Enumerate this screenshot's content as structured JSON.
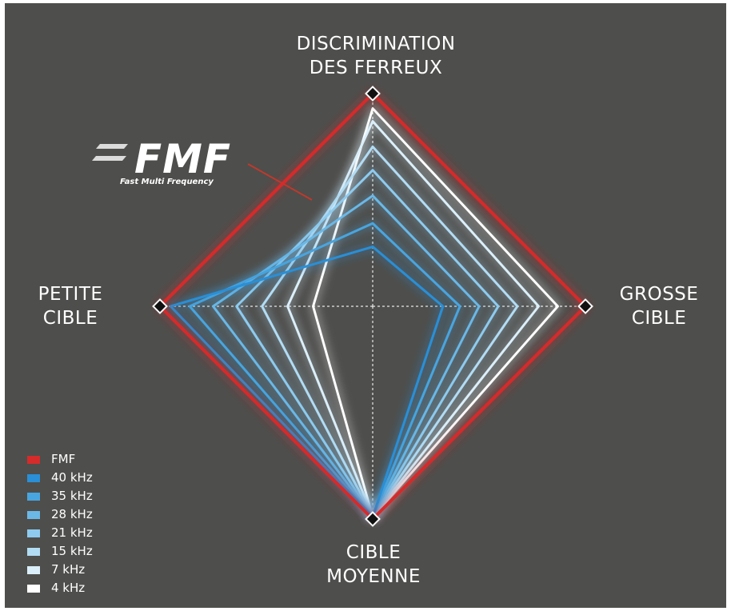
{
  "chart_data": {
    "type": "radar",
    "logo": {
      "text": "FMF",
      "subtitle": "Fast Multi Frequency"
    },
    "categories": [
      "DISCRIMINATION\nDES FERREUX",
      "GROSSE\nCIBLE",
      "CIBLE\nMOYENNE",
      "PETITE\nCIBLE"
    ],
    "ylim": [
      0,
      100
    ],
    "series": [
      {
        "name": "FMF",
        "color": "#d62b2b",
        "values": [
          100,
          100,
          100,
          100
        ]
      },
      {
        "name": "40 kHz",
        "color": "#2a8fd6",
        "values": [
          28,
          33,
          99,
          95
        ]
      },
      {
        "name": "35 kHz",
        "color": "#49a5df",
        "values": [
          39,
          41,
          99,
          86
        ]
      },
      {
        "name": "28 kHz",
        "color": "#6bb8e7",
        "values": [
          52,
          50,
          99,
          75
        ]
      },
      {
        "name": "21 kHz",
        "color": "#8ecbef",
        "values": [
          64,
          59,
          99,
          64
        ]
      },
      {
        "name": "15 kHz",
        "color": "#b2dcf4",
        "values": [
          75,
          68,
          99,
          52
        ]
      },
      {
        "name": "7 kHz",
        "color": "#dbeffa",
        "values": [
          87,
          78,
          99,
          40
        ]
      },
      {
        "name": "4 kHz",
        "color": "#ffffff",
        "values": [
          93,
          87,
          99,
          28
        ]
      }
    ]
  }
}
